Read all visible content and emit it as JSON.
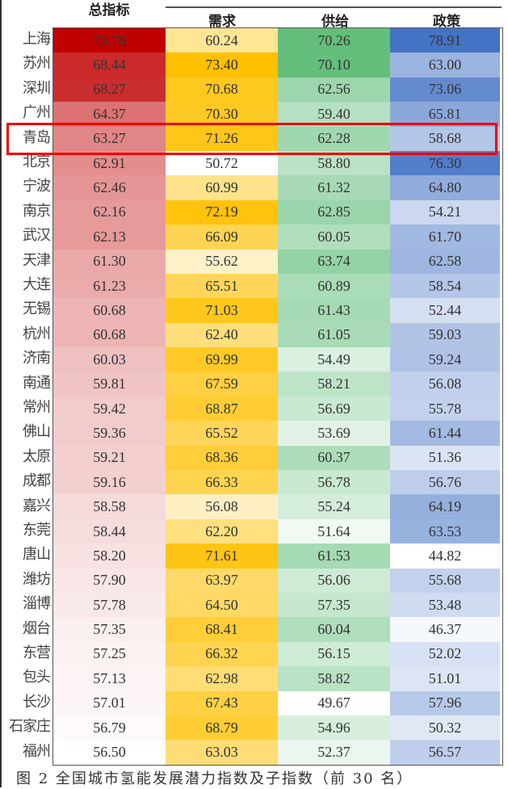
{
  "chart_data": {
    "type": "heatmap",
    "title": "",
    "caption": "图 2 全国城市氢能发展潜力指数及子指数（前 30 名）",
    "columns": [
      "总指标",
      "需求",
      "供给",
      "政策"
    ],
    "column_colors": [
      "#c00000",
      "#ffc000",
      "#63be7b",
      "#4472c4"
    ],
    "highlighted_row": "青岛",
    "highlight_color": "#f00000",
    "rows": [
      {
        "city": "上海",
        "values": [
          70.78,
          60.24,
          70.26,
          78.91
        ]
      },
      {
        "city": "苏州",
        "values": [
          68.44,
          73.4,
          70.1,
          63.0
        ]
      },
      {
        "city": "深圳",
        "values": [
          68.27,
          70.68,
          62.56,
          73.06
        ]
      },
      {
        "city": "广州",
        "values": [
          64.37,
          70.3,
          59.4,
          65.81
        ]
      },
      {
        "city": "青岛",
        "values": [
          63.27,
          71.26,
          62.28,
          58.68
        ]
      },
      {
        "city": "北京",
        "values": [
          62.91,
          50.72,
          58.8,
          76.3
        ]
      },
      {
        "city": "宁波",
        "values": [
          62.46,
          60.99,
          61.32,
          64.8
        ]
      },
      {
        "city": "南京",
        "values": [
          62.16,
          72.19,
          62.85,
          54.21
        ]
      },
      {
        "city": "武汉",
        "values": [
          62.13,
          66.09,
          60.05,
          61.7
        ]
      },
      {
        "city": "天津",
        "values": [
          61.3,
          55.62,
          63.74,
          62.58
        ]
      },
      {
        "city": "大连",
        "values": [
          61.23,
          65.51,
          60.89,
          58.54
        ]
      },
      {
        "city": "无锡",
        "values": [
          60.68,
          71.03,
          61.43,
          52.44
        ]
      },
      {
        "city": "杭州",
        "values": [
          60.68,
          62.4,
          61.05,
          59.03
        ]
      },
      {
        "city": "济南",
        "values": [
          60.03,
          69.99,
          54.49,
          59.24
        ]
      },
      {
        "city": "南通",
        "values": [
          59.81,
          67.59,
          58.21,
          56.08
        ]
      },
      {
        "city": "常州",
        "values": [
          59.42,
          68.87,
          56.69,
          55.78
        ]
      },
      {
        "city": "佛山",
        "values": [
          59.36,
          65.52,
          53.69,
          61.44
        ]
      },
      {
        "city": "太原",
        "values": [
          59.21,
          68.36,
          60.37,
          51.36
        ]
      },
      {
        "city": "成都",
        "values": [
          59.16,
          66.33,
          56.78,
          56.76
        ]
      },
      {
        "city": "嘉兴",
        "values": [
          58.58,
          56.08,
          55.24,
          64.19
        ]
      },
      {
        "city": "东莞",
        "values": [
          58.44,
          62.2,
          51.64,
          63.53
        ]
      },
      {
        "city": "唐山",
        "values": [
          58.2,
          71.61,
          61.53,
          44.82
        ]
      },
      {
        "city": "潍坊",
        "values": [
          57.9,
          63.97,
          56.06,
          55.68
        ]
      },
      {
        "city": "淄博",
        "values": [
          57.78,
          64.5,
          57.35,
          53.48
        ]
      },
      {
        "city": "烟台",
        "values": [
          57.35,
          68.41,
          60.04,
          46.37
        ]
      },
      {
        "city": "东营",
        "values": [
          57.25,
          66.32,
          56.15,
          52.02
        ]
      },
      {
        "city": "包头",
        "values": [
          57.13,
          62.98,
          58.82,
          51.01
        ]
      },
      {
        "city": "长沙",
        "values": [
          57.01,
          67.43,
          49.67,
          57.96
        ]
      },
      {
        "city": "石家庄",
        "values": [
          56.79,
          68.79,
          54.96,
          50.32
        ]
      },
      {
        "city": "福州",
        "values": [
          56.5,
          63.03,
          52.37,
          56.57
        ]
      }
    ]
  }
}
